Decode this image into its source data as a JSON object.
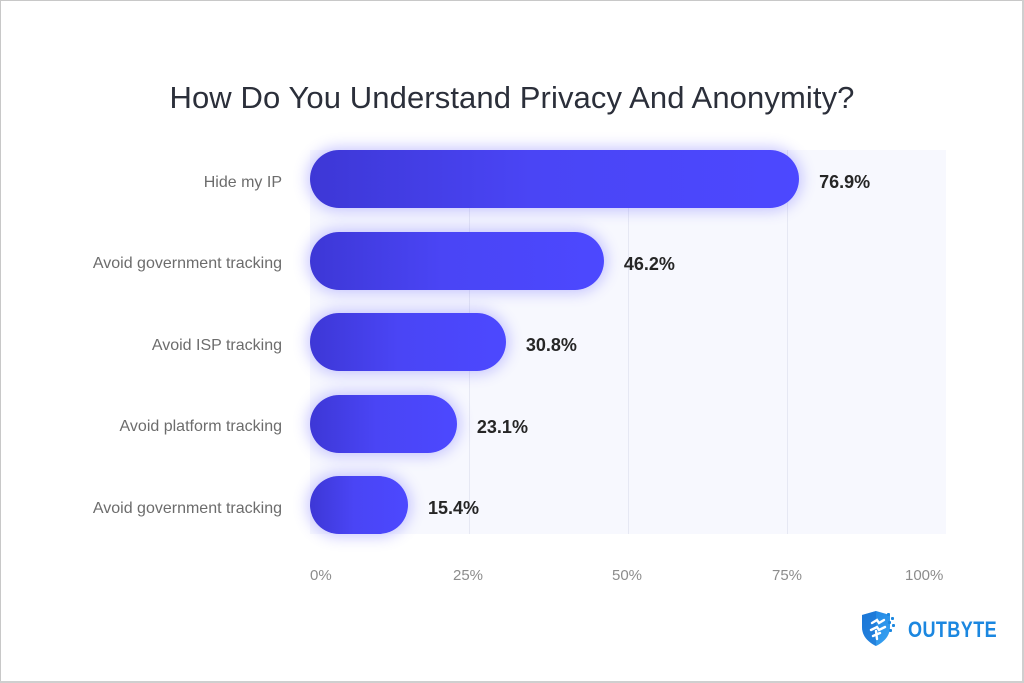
{
  "title": "How Do You Understand Privacy And Anonymity?",
  "chart_data": {
    "type": "bar",
    "orientation": "horizontal",
    "title": "How Do You Understand Privacy And Anonymity?",
    "categories": [
      "Hide my IP",
      "Avoid government tracking",
      "Avoid ISP tracking",
      "Avoid platform tracking",
      "Avoid government tracking"
    ],
    "values": [
      76.9,
      46.2,
      30.8,
      23.1,
      15.4
    ],
    "value_labels": [
      "76.9%",
      "46.2%",
      "30.8%",
      "23.1%",
      "15.4%"
    ],
    "xlabel": "",
    "ylabel": "",
    "xlim": [
      0,
      100
    ],
    "x_ticks": [
      "0%",
      "25%",
      "50%",
      "75%",
      "100%"
    ],
    "grid": true,
    "legend": null,
    "bar_color": "#4a45f5"
  },
  "brand": {
    "name": "OUTBYTE",
    "icon": "shield-icon",
    "color": "#1b87e0"
  }
}
